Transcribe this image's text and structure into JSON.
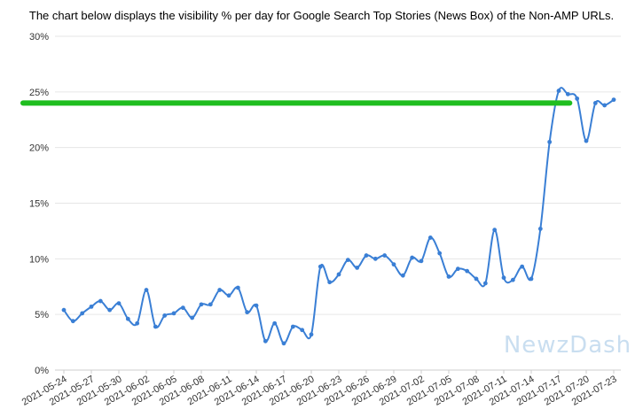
{
  "title": "The chart below displays the visibility % per day for Google Search Top Stories (News Box) of the Non-AMP URLs.",
  "watermark": "NewzDash",
  "colors": {
    "line": "#3a7fd5",
    "reference": "#1fbe1f",
    "grid": "#e6e6e6",
    "axis_text": "#333333",
    "watermark": "#c9def0"
  },
  "chart_data": {
    "type": "line",
    "title": "The chart below displays the visibility % per day for Google Search Top Stories (News Box) of the Non-AMP URLs.",
    "xlabel": "",
    "ylabel": "",
    "ylim": [
      0,
      30
    ],
    "y_ticks": [
      0,
      5,
      10,
      15,
      20,
      25,
      30
    ],
    "y_tick_labels": [
      "0%",
      "5%",
      "10%",
      "15%",
      "20%",
      "25%",
      "30%"
    ],
    "grid": true,
    "legend": "none",
    "x": [
      "2021-05-24",
      "2021-05-25",
      "2021-05-26",
      "2021-05-27",
      "2021-05-28",
      "2021-05-29",
      "2021-05-30",
      "2021-05-31",
      "2021-06-01",
      "2021-06-02",
      "2021-06-03",
      "2021-06-04",
      "2021-06-05",
      "2021-06-06",
      "2021-06-07",
      "2021-06-08",
      "2021-06-09",
      "2021-06-10",
      "2021-06-11",
      "2021-06-12",
      "2021-06-13",
      "2021-06-14",
      "2021-06-15",
      "2021-06-16",
      "2021-06-17",
      "2021-06-18",
      "2021-06-19",
      "2021-06-20",
      "2021-06-21",
      "2021-06-22",
      "2021-06-23",
      "2021-06-24",
      "2021-06-25",
      "2021-06-26",
      "2021-06-27",
      "2021-06-28",
      "2021-06-29",
      "2021-06-30",
      "2021-07-01",
      "2021-07-02",
      "2021-07-03",
      "2021-07-04",
      "2021-07-05",
      "2021-07-06",
      "2021-07-07",
      "2021-07-08",
      "2021-07-09",
      "2021-07-10",
      "2021-07-11",
      "2021-07-12",
      "2021-07-13",
      "2021-07-14",
      "2021-07-15",
      "2021-07-16",
      "2021-07-17",
      "2021-07-18",
      "2021-07-19",
      "2021-07-20",
      "2021-07-21",
      "2021-07-22",
      "2021-07-23"
    ],
    "x_tick_labels": [
      "2021-05-24",
      "2021-05-27",
      "2021-05-30",
      "2021-06-02",
      "2021-06-05",
      "2021-06-08",
      "2021-06-11",
      "2021-06-14",
      "2021-06-17",
      "2021-06-20",
      "2021-06-23",
      "2021-06-26",
      "2021-06-29",
      "2021-07-02",
      "2021-07-05",
      "2021-07-08",
      "2021-07-11",
      "2021-07-14",
      "2021-07-17",
      "2021-07-20",
      "2021-07-23"
    ],
    "series": [
      {
        "values": [
          5.4,
          4.4,
          5.1,
          5.7,
          6.2,
          5.4,
          6.0,
          4.6,
          4.2,
          7.2,
          3.9,
          4.9,
          5.1,
          5.6,
          4.7,
          5.9,
          5.9,
          7.2,
          6.7,
          7.4,
          5.2,
          5.8,
          2.6,
          4.2,
          2.4,
          3.9,
          3.6,
          3.2,
          9.3,
          7.9,
          8.6,
          9.9,
          9.2,
          10.3,
          10.0,
          10.3,
          9.5,
          8.5,
          10.1,
          9.8,
          11.9,
          10.5,
          8.4,
          9.1,
          8.9,
          8.2,
          7.8,
          12.6,
          8.3,
          8.1,
          9.3,
          8.2,
          12.7,
          20.5,
          25.1,
          24.8,
          24.4,
          20.6,
          24.0,
          23.8,
          24.3
        ]
      }
    ],
    "annotations": [
      {
        "type": "horizontal-line",
        "y": 24.0,
        "from": "2021-05-20",
        "to": "2021-07-18",
        "color": "#1fbe1f"
      }
    ]
  }
}
